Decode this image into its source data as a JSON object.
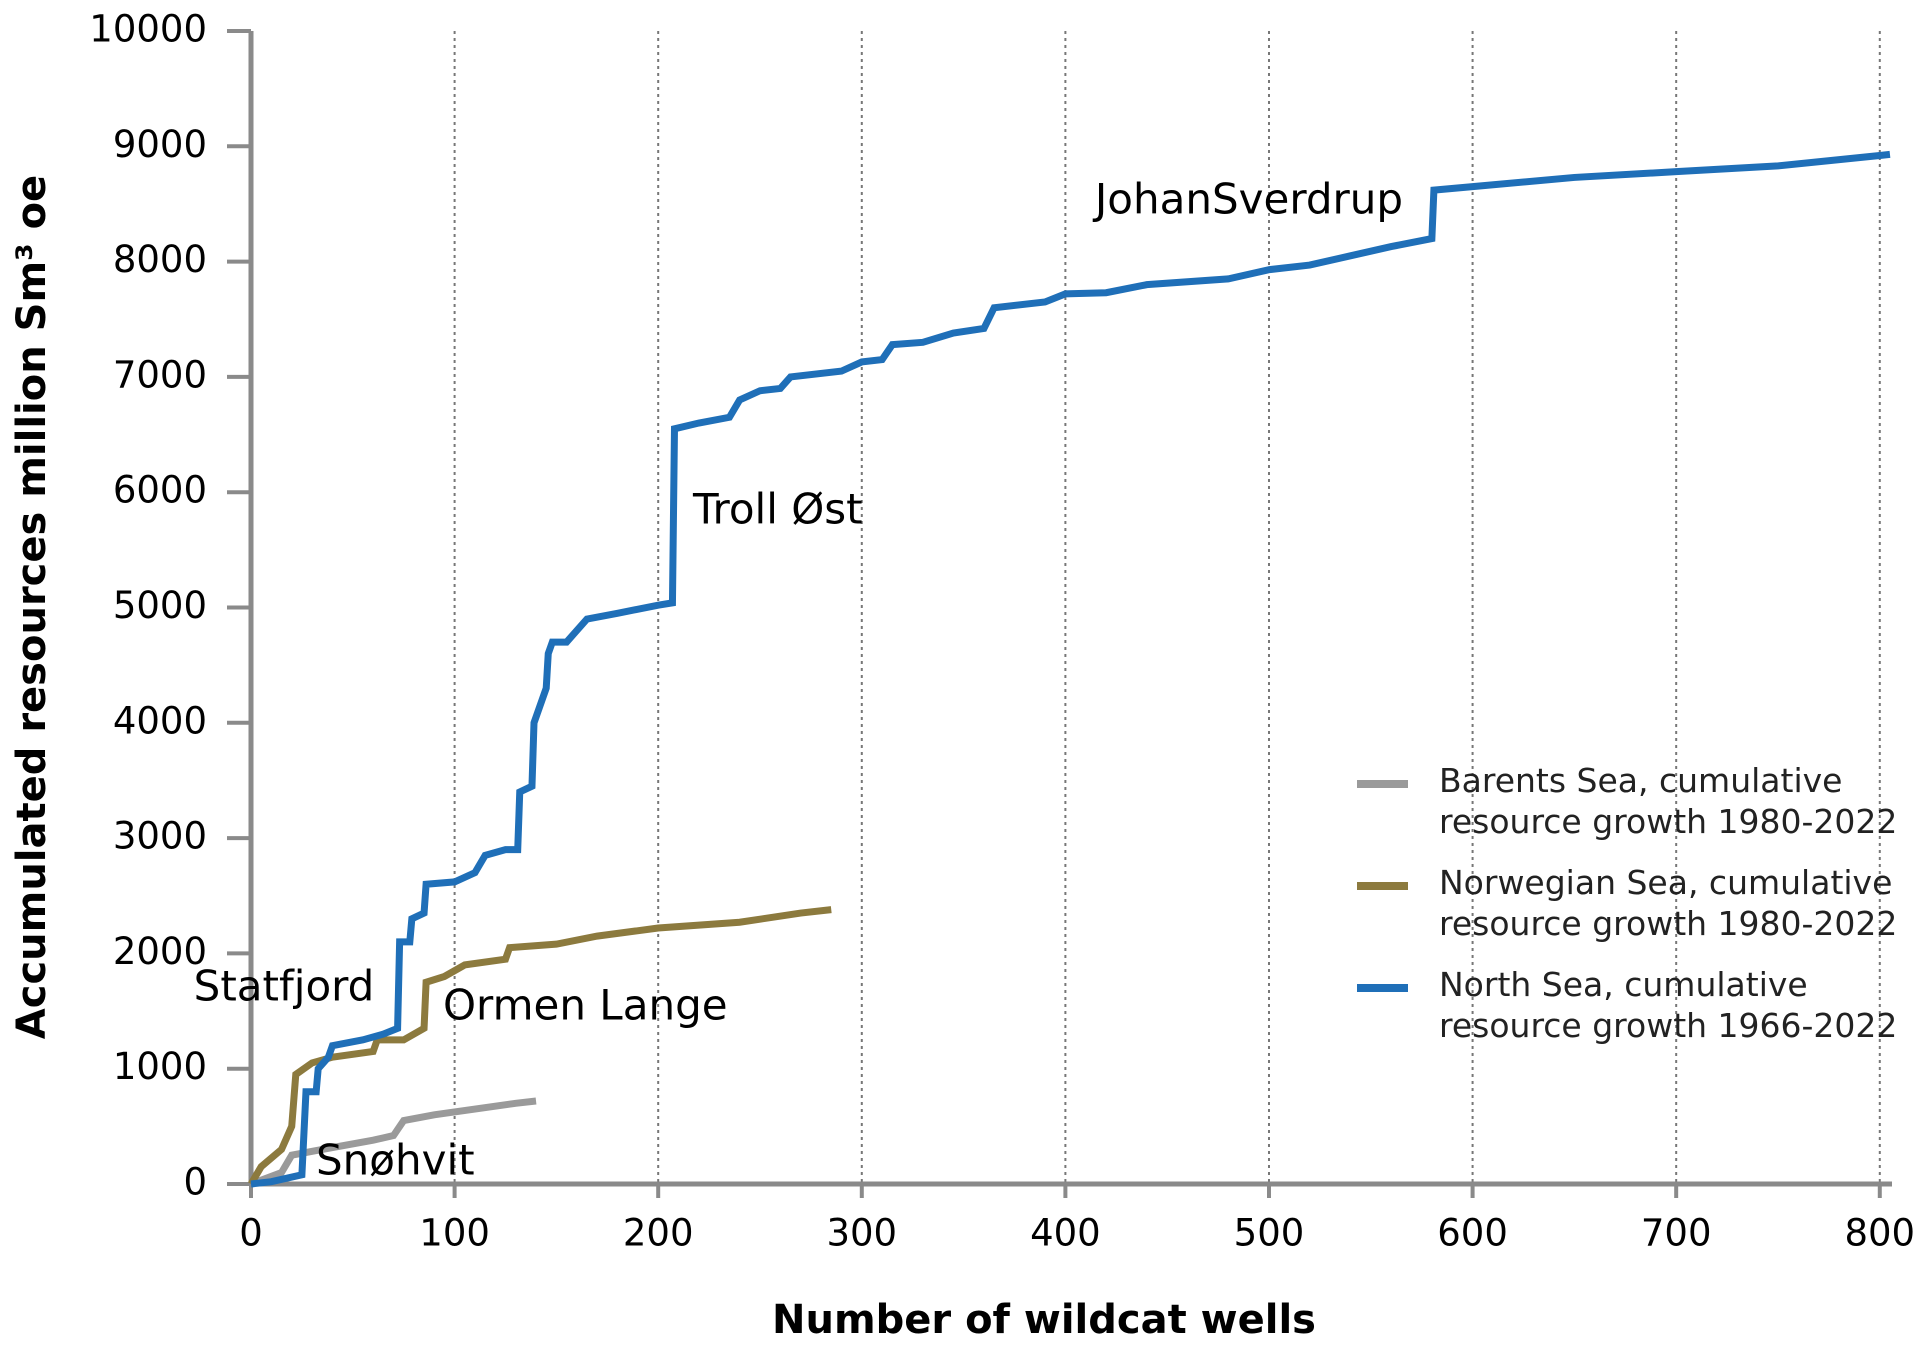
{
  "chart_data": {
    "type": "line",
    "x_label": "Number of wildcat wells",
    "y_label": "Accumulated resources million Sm³ oe",
    "xlim": [
      0,
      806
    ],
    "ylim": [
      0,
      10000
    ],
    "xticks": [
      0,
      100,
      200,
      300,
      400,
      500,
      600,
      700,
      800
    ],
    "yticks": [
      0,
      1000,
      2000,
      3000,
      4000,
      5000,
      6000,
      7000,
      8000,
      9000,
      10000
    ],
    "grid": "x",
    "legend": "lower right",
    "annotations": [
      "JohanSverdrup",
      "Troll Øst",
      "Statfjord",
      "Ormen Lange",
      "Snøhvit"
    ],
    "series": [
      {
        "name": "Barents Sea, cumulative resource growth 1980-2022",
        "color": "#9a9a9a",
        "x": [
          0,
          15,
          20,
          35,
          60,
          70,
          75,
          90,
          110,
          130,
          140
        ],
        "values": [
          0,
          100,
          250,
          300,
          380,
          420,
          550,
          600,
          650,
          700,
          720
        ]
      },
      {
        "name": "Norwegian Sea, cumulative resource growth 1980-2022",
        "color": "#8c7a3e",
        "x": [
          0,
          5,
          15,
          20,
          22,
          30,
          40,
          60,
          62,
          75,
          85,
          86,
          95,
          105,
          125,
          127,
          150,
          170,
          200,
          240,
          270,
          285
        ],
        "values": [
          0,
          150,
          300,
          500,
          950,
          1050,
          1100,
          1150,
          1250,
          1250,
          1350,
          1750,
          1800,
          1900,
          1950,
          2050,
          2080,
          2150,
          2220,
          2270,
          2350,
          2380
        ]
      },
      {
        "name": "North Sea, cumulative resource growth 1966-2022",
        "color": "#1f6fb8",
        "x": [
          0,
          10,
          25,
          27,
          32,
          33,
          38,
          40,
          55,
          65,
          72,
          73,
          78,
          79,
          85,
          86,
          100,
          110,
          115,
          125,
          131,
          132,
          138,
          139,
          145,
          146,
          148,
          155,
          165,
          180,
          200,
          207,
          208,
          220,
          235,
          240,
          250,
          260,
          265,
          290,
          300,
          310,
          315,
          330,
          345,
          360,
          365,
          390,
          400,
          420,
          440,
          480,
          500,
          520,
          540,
          560,
          580,
          581,
          600,
          650,
          700,
          750,
          800,
          805
        ],
        "values": [
          0,
          20,
          80,
          800,
          800,
          1000,
          1100,
          1200,
          1250,
          1300,
          1350,
          2100,
          2100,
          2300,
          2350,
          2600,
          2620,
          2700,
          2850,
          2900,
          2900,
          3400,
          3450,
          4000,
          4300,
          4600,
          4700,
          4700,
          4900,
          4950,
          5020,
          5040,
          6550,
          6600,
          6650,
          6800,
          6880,
          6900,
          7000,
          7050,
          7130,
          7150,
          7280,
          7300,
          7380,
          7420,
          7600,
          7650,
          7720,
          7730,
          7800,
          7850,
          7930,
          7970,
          8050,
          8130,
          8200,
          8620,
          8650,
          8730,
          8780,
          8830,
          8920,
          8930
        ]
      }
    ]
  }
}
